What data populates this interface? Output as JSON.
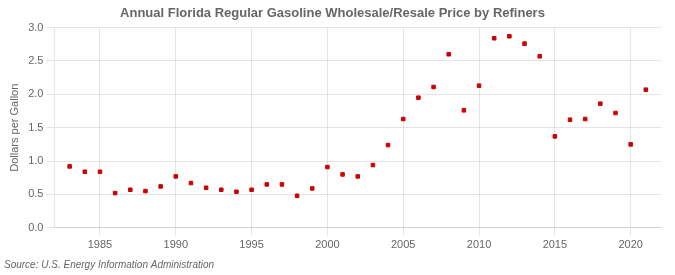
{
  "chart_data": {
    "type": "scatter",
    "title": "Annual Florida Regular Gasoline Wholesale/Resale Price by Refiners",
    "y_label": "Dollars per Gallon",
    "annotations": [
      "Source: U.S. Energy Information Administration"
    ],
    "x": [
      1983,
      1984,
      1985,
      1986,
      1987,
      1988,
      1989,
      1990,
      1991,
      1992,
      1993,
      1994,
      1995,
      1996,
      1997,
      1998,
      1999,
      2000,
      2001,
      2002,
      2003,
      2004,
      2005,
      2006,
      2007,
      2008,
      2009,
      2010,
      2011,
      2012,
      2013,
      2014,
      2015,
      2016,
      2017,
      2018,
      2019,
      2020,
      2021
    ],
    "values": [
      0.92,
      0.84,
      0.84,
      0.52,
      0.57,
      0.55,
      0.62,
      0.77,
      0.67,
      0.6,
      0.57,
      0.54,
      0.57,
      0.65,
      0.65,
      0.48,
      0.59,
      0.91,
      0.8,
      0.77,
      0.94,
      1.24,
      1.63,
      1.95,
      2.11,
      2.6,
      1.76,
      2.13,
      2.84,
      2.87,
      2.76,
      2.57,
      1.37,
      1.62,
      1.63,
      1.86,
      1.72,
      1.25,
      2.07
    ],
    "color": "#cc0000",
    "marker": "square",
    "xlim": [
      1982,
      2022
    ],
    "xticks": [
      1985,
      1990,
      1995,
      2000,
      2005,
      2010,
      2015,
      2020
    ],
    "ylim": [
      0.0,
      3.0
    ],
    "yticks": [
      {
        "value": 0,
        "label": "0.0"
      },
      0.5,
      {
        "value": 1,
        "label": "1.0"
      },
      1.5,
      {
        "value": 2,
        "label": "2.0"
      },
      2.5,
      {
        "value": 3,
        "label": "3.0"
      }
    ],
    "grid": true
  }
}
